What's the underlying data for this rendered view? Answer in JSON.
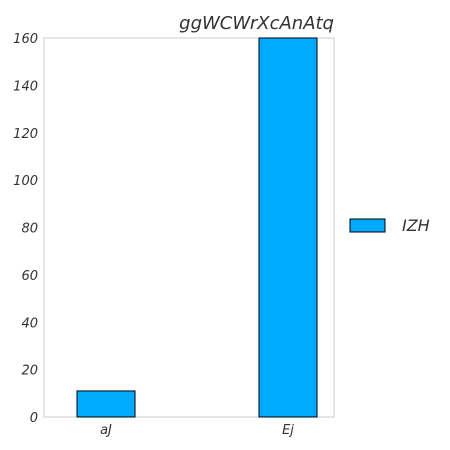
{
  "chart_data": {
    "type": "bar",
    "title": "ggWCWrXcAnAtq",
    "categories": [
      "aJ",
      "Ej"
    ],
    "series": [
      {
        "name": "IZH",
        "values": [
          11,
          160
        ],
        "color": "#00aaff"
      }
    ],
    "xlabel": "",
    "ylabel": "",
    "ylim": [
      0,
      160
    ],
    "yticks": [
      0,
      20,
      40,
      60,
      80,
      100,
      120,
      140,
      160
    ],
    "grid": false,
    "legend_position": "right"
  }
}
